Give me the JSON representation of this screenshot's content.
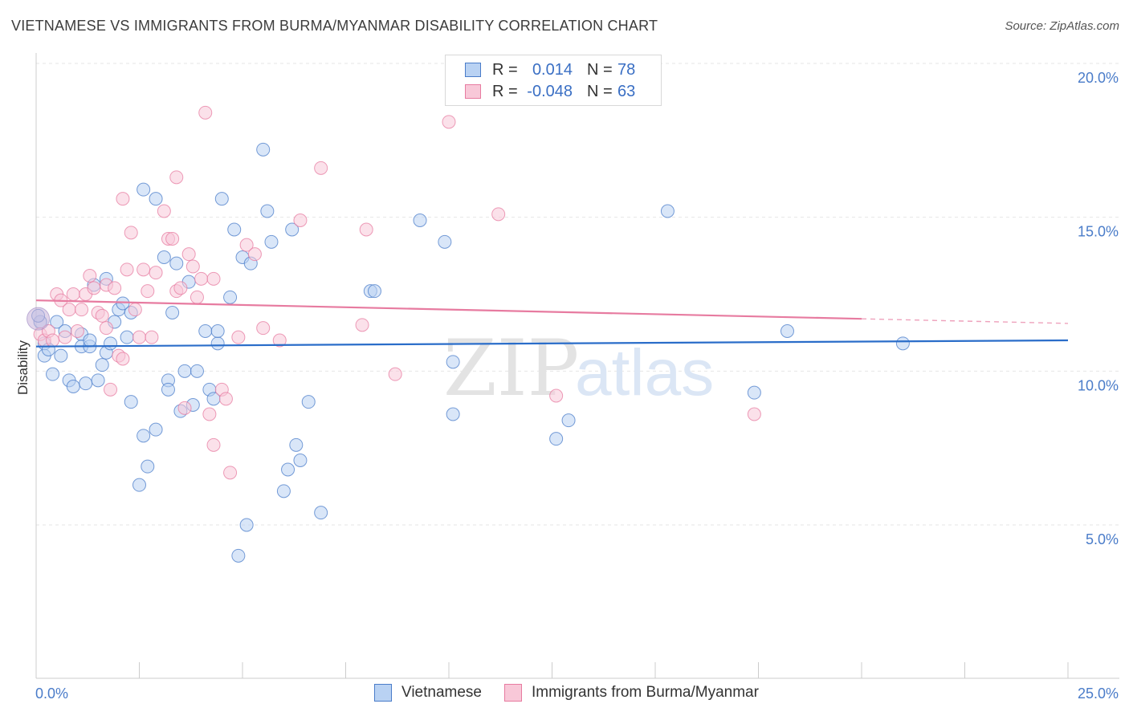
{
  "title": "VIETNAMESE VS IMMIGRANTS FROM BURMA/MYANMAR DISABILITY CORRELATION CHART",
  "source": "Source: ZipAtlas.com",
  "watermark": {
    "zip": "ZIP",
    "atlas": "atlas"
  },
  "legend": {
    "rows": [
      {
        "r_label": "R =",
        "r_value": "0.014",
        "n_label": "N =",
        "n_value": "78",
        "color": "#4a7cc9",
        "fill": "#b9d2f3"
      },
      {
        "r_label": "R =",
        "r_value": "-0.048",
        "n_label": "N =",
        "n_value": "63",
        "color": "#e77ba0",
        "fill": "#f8c8d8"
      }
    ]
  },
  "chart_data": {
    "type": "scatter",
    "title": "VIETNAMESE VS IMMIGRANTS FROM BURMA/MYANMAR DISABILITY CORRELATION CHART",
    "xlabel": "",
    "ylabel": "Disability",
    "xlim": [
      0,
      25
    ],
    "ylim": [
      0,
      20.5
    ],
    "x_tick_labels": [
      "0.0%",
      "25.0%"
    ],
    "y_ticks": [
      5,
      10,
      15,
      20
    ],
    "y_tick_labels": [
      "5.0%",
      "10.0%",
      "15.0%",
      "20.0%"
    ],
    "grid": true,
    "legend_position": "top-center",
    "series": [
      {
        "name": "Vietnamese",
        "color": "#4a7cc9",
        "fill": "#b9d2f3",
        "trend": {
          "x": [
            0,
            25
          ],
          "y": [
            10.8,
            11.0
          ],
          "dashed_from": null
        },
        "points": [
          [
            0.1,
            11.6
          ],
          [
            0.2,
            10.9
          ],
          [
            0.2,
            10.5
          ],
          [
            0.3,
            10.7
          ],
          [
            0.4,
            9.9
          ],
          [
            0.5,
            11.6
          ],
          [
            0.6,
            10.5
          ],
          [
            0.7,
            11.3
          ],
          [
            0.8,
            9.7
          ],
          [
            0.9,
            9.5
          ],
          [
            1.1,
            11.2
          ],
          [
            1.1,
            10.8
          ],
          [
            1.2,
            9.6
          ],
          [
            1.3,
            10.8
          ],
          [
            1.4,
            12.8
          ],
          [
            1.5,
            9.7
          ],
          [
            1.6,
            10.2
          ],
          [
            1.7,
            10.6
          ],
          [
            1.7,
            13.0
          ],
          [
            1.8,
            10.9
          ],
          [
            1.9,
            11.6
          ],
          [
            2.0,
            12.0
          ],
          [
            2.1,
            12.2
          ],
          [
            2.2,
            11.1
          ],
          [
            2.3,
            11.9
          ],
          [
            2.3,
            9.0
          ],
          [
            2.5,
            6.3
          ],
          [
            2.6,
            7.9
          ],
          [
            2.6,
            15.9
          ],
          [
            2.7,
            6.9
          ],
          [
            2.9,
            15.6
          ],
          [
            2.9,
            8.1
          ],
          [
            3.1,
            13.7
          ],
          [
            3.2,
            9.7
          ],
          [
            3.2,
            9.4
          ],
          [
            3.3,
            11.9
          ],
          [
            3.4,
            13.5
          ],
          [
            3.5,
            8.7
          ],
          [
            3.6,
            10.0
          ],
          [
            3.7,
            12.9
          ],
          [
            3.8,
            8.9
          ],
          [
            3.9,
            10.0
          ],
          [
            4.1,
            11.3
          ],
          [
            4.2,
            9.4
          ],
          [
            4.3,
            9.1
          ],
          [
            4.4,
            10.9
          ],
          [
            4.4,
            11.3
          ],
          [
            4.5,
            15.6
          ],
          [
            4.7,
            12.4
          ],
          [
            4.8,
            14.6
          ],
          [
            4.9,
            4.0
          ],
          [
            5.0,
            13.7
          ],
          [
            5.1,
            5.0
          ],
          [
            5.2,
            13.5
          ],
          [
            5.5,
            17.2
          ],
          [
            5.6,
            15.2
          ],
          [
            5.7,
            14.2
          ],
          [
            6.0,
            6.1
          ],
          [
            6.1,
            6.8
          ],
          [
            6.2,
            14.6
          ],
          [
            6.3,
            7.6
          ],
          [
            6.4,
            7.1
          ],
          [
            6.6,
            9.0
          ],
          [
            6.9,
            5.4
          ],
          [
            8.1,
            12.6
          ],
          [
            8.2,
            12.6
          ],
          [
            9.3,
            14.9
          ],
          [
            9.9,
            14.2
          ],
          [
            10.1,
            10.3
          ],
          [
            10.1,
            8.6
          ],
          [
            12.6,
            7.8
          ],
          [
            12.9,
            8.4
          ],
          [
            15.3,
            15.2
          ],
          [
            17.4,
            9.3
          ],
          [
            18.2,
            11.3
          ],
          [
            21.0,
            10.9
          ],
          [
            0.05,
            11.8
          ],
          [
            1.3,
            11.0
          ]
        ]
      },
      {
        "name": "Immigrants from Burma/Myanmar",
        "color": "#e77ba0",
        "fill": "#f8c8d8",
        "trend": {
          "x": [
            0,
            20.0,
            25
          ],
          "y": [
            12.3,
            11.7,
            11.55
          ],
          "dashed_from": 20.0
        },
        "points": [
          [
            0.1,
            11.2
          ],
          [
            0.2,
            11.0
          ],
          [
            0.3,
            11.3
          ],
          [
            0.4,
            11.0
          ],
          [
            0.5,
            12.5
          ],
          [
            0.6,
            12.3
          ],
          [
            0.7,
            11.1
          ],
          [
            0.8,
            12.0
          ],
          [
            0.9,
            12.5
          ],
          [
            1.0,
            11.3
          ],
          [
            1.1,
            12.0
          ],
          [
            1.2,
            12.5
          ],
          [
            1.3,
            13.1
          ],
          [
            1.4,
            12.7
          ],
          [
            1.5,
            11.9
          ],
          [
            1.6,
            11.8
          ],
          [
            1.7,
            12.8
          ],
          [
            1.7,
            11.4
          ],
          [
            1.8,
            9.4
          ],
          [
            1.9,
            12.7
          ],
          [
            2.0,
            10.5
          ],
          [
            2.1,
            10.4
          ],
          [
            2.1,
            15.6
          ],
          [
            2.2,
            13.3
          ],
          [
            2.3,
            14.5
          ],
          [
            2.4,
            12.0
          ],
          [
            2.5,
            11.1
          ],
          [
            2.6,
            13.3
          ],
          [
            2.7,
            12.6
          ],
          [
            2.8,
            11.1
          ],
          [
            2.9,
            13.2
          ],
          [
            3.1,
            15.2
          ],
          [
            3.2,
            14.3
          ],
          [
            3.3,
            14.3
          ],
          [
            3.4,
            12.6
          ],
          [
            3.4,
            16.3
          ],
          [
            3.5,
            12.7
          ],
          [
            3.6,
            8.8
          ],
          [
            3.7,
            13.8
          ],
          [
            3.8,
            13.4
          ],
          [
            3.9,
            12.4
          ],
          [
            4.0,
            13.0
          ],
          [
            4.1,
            18.4
          ],
          [
            4.2,
            8.6
          ],
          [
            4.3,
            7.6
          ],
          [
            4.3,
            13.0
          ],
          [
            4.5,
            9.4
          ],
          [
            4.6,
            9.1
          ],
          [
            4.7,
            6.7
          ],
          [
            4.9,
            11.1
          ],
          [
            5.1,
            14.1
          ],
          [
            5.3,
            13.8
          ],
          [
            5.5,
            11.4
          ],
          [
            5.9,
            11.0
          ],
          [
            6.4,
            14.9
          ],
          [
            6.9,
            16.6
          ],
          [
            7.9,
            11.5
          ],
          [
            8.0,
            14.6
          ],
          [
            8.7,
            9.9
          ],
          [
            10.0,
            18.1
          ],
          [
            11.2,
            15.1
          ],
          [
            12.6,
            9.2
          ],
          [
            17.4,
            8.6
          ]
        ]
      }
    ]
  }
}
